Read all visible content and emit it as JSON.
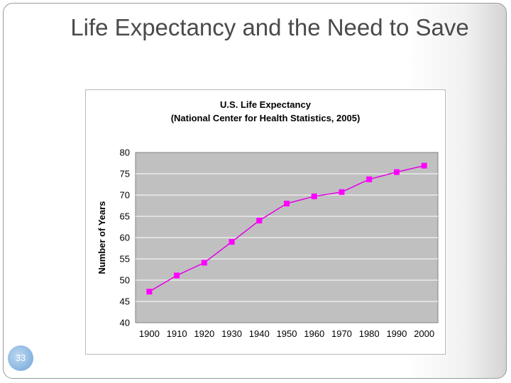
{
  "slide": {
    "title": "Life Expectancy and the Need to Save",
    "number": "33"
  },
  "chart_data": {
    "type": "line",
    "title": "U.S. Life Expectancy",
    "subtitle": "(National Center for Health Statistics, 2005)",
    "xlabel": "",
    "ylabel": "Number of Years",
    "x": [
      "1900",
      "1910",
      "1920",
      "1930",
      "1940",
      "1950",
      "1960",
      "1970",
      "1980",
      "1990",
      "2000"
    ],
    "series": [
      {
        "values": [
          47.3,
          51.1,
          54.1,
          59.0,
          64.0,
          68.0,
          69.7,
          70.7,
          73.7,
          75.4,
          76.9
        ]
      }
    ],
    "ylim": [
      40,
      80
    ],
    "yticks": [
      40,
      45,
      50,
      55,
      60,
      65,
      70,
      75,
      80
    ],
    "grid": true,
    "legend": "none",
    "colors": {
      "line": "#e600e6",
      "marker": "#ff00ff",
      "plot_background": "#c0c0c0",
      "grid": "#ffffff"
    }
  }
}
